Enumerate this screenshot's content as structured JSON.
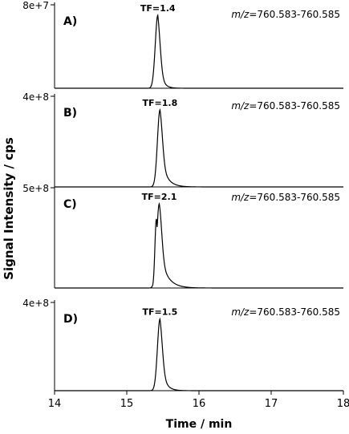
{
  "chart_data": {
    "type": "line",
    "ylabel": "Signal Intensity / cps",
    "xlabel": "Time / min",
    "xlim": [
      14,
      18
    ],
    "x_ticks": [
      "14",
      "15",
      "16",
      "17",
      "18"
    ],
    "grid": false,
    "panels": [
      {
        "label": "A)",
        "tf_label": "TF=1.4",
        "mz_prefix": "m/z",
        "mz_range": "=760.583-760.585",
        "y_max_label": "8e+7",
        "ylim": [
          0,
          80000000
        ],
        "peak_apex_time": 15.43,
        "peak_height": 70000000,
        "sigma": 0.035,
        "tail": 0.05,
        "shoulder": 0
      },
      {
        "label": "B)",
        "tf_label": "TF=1.8",
        "mz_prefix": "m/z",
        "mz_range": "=760.583-760.585",
        "y_max_label": "4e+8",
        "ylim": [
          0,
          400000000
        ],
        "peak_apex_time": 15.46,
        "peak_height": 340000000,
        "sigma": 0.035,
        "tail": 0.08,
        "shoulder": 0
      },
      {
        "label": "C)",
        "tf_label": "TF=2.1",
        "mz_prefix": "m/z",
        "mz_range": "=760.583-760.585",
        "y_max_label": "5e+8",
        "ylim": [
          0,
          500000000
        ],
        "peak_apex_time": 15.45,
        "peak_height": 420000000,
        "sigma": 0.035,
        "tail": 0.1,
        "shoulder": 1
      },
      {
        "label": "D)",
        "tf_label": "TF=1.5",
        "mz_prefix": "m/z",
        "mz_range": "=760.583-760.585",
        "y_max_label": "4e+8",
        "ylim": [
          0,
          400000000
        ],
        "peak_apex_time": 15.46,
        "peak_height": 325000000,
        "sigma": 0.035,
        "tail": 0.06,
        "shoulder": 0
      }
    ]
  }
}
